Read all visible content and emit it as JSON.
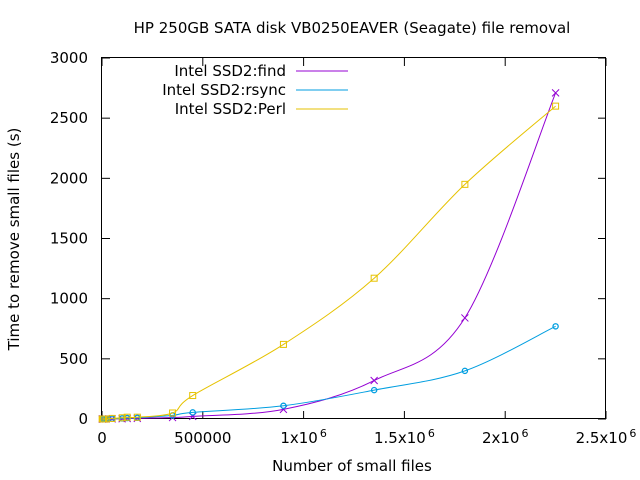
{
  "chart_data": {
    "type": "line",
    "title": "HP 250GB SATA disk VB0250EAVER (Seagate) file removal",
    "xlabel": "Number of small files",
    "ylabel": "Time to remove small files (s)",
    "xlim": [
      0,
      2500000
    ],
    "ylim": [
      0,
      3000
    ],
    "grid": false,
    "legend_position": "top-left",
    "x_ticks": [
      {
        "value": 0,
        "label": "0"
      },
      {
        "value": 500000,
        "label": "500000"
      },
      {
        "value": 1000000,
        "base": "1x10",
        "exp": "6"
      },
      {
        "value": 1500000,
        "base": "1.5x10",
        "exp": "6"
      },
      {
        "value": 2000000,
        "base": "2x10",
        "exp": "6"
      },
      {
        "value": 2500000,
        "base": "2.5x10",
        "exp": "6"
      }
    ],
    "y_ticks": [
      {
        "value": 0,
        "label": "0"
      },
      {
        "value": 500,
        "label": "500"
      },
      {
        "value": 1000,
        "label": "1000"
      },
      {
        "value": 1500,
        "label": "1500"
      },
      {
        "value": 2000,
        "label": "2000"
      },
      {
        "value": 2500,
        "label": "2500"
      },
      {
        "value": 3000,
        "label": "3000"
      }
    ],
    "series": [
      {
        "name": "Intel SSD2:find",
        "color": "#9400d3",
        "marker": "x",
        "points": [
          [
            1000,
            0
          ],
          [
            2000,
            0
          ],
          [
            5000,
            0
          ],
          [
            10000,
            0
          ],
          [
            20000,
            0
          ],
          [
            50000,
            1
          ],
          [
            100000,
            2
          ],
          [
            125000,
            4
          ],
          [
            175000,
            5
          ],
          [
            350000,
            12
          ],
          [
            450000,
            22
          ],
          [
            900000,
            80
          ],
          [
            1350000,
            320
          ],
          [
            1800000,
            840
          ],
          [
            2250000,
            2710
          ]
        ]
      },
      {
        "name": "Intel SSD2:rsync",
        "color": "#009ee0",
        "marker": "circle",
        "points": [
          [
            1000,
            0
          ],
          [
            2000,
            0
          ],
          [
            5000,
            0
          ],
          [
            10000,
            0
          ],
          [
            20000,
            0
          ],
          [
            50000,
            2
          ],
          [
            100000,
            5
          ],
          [
            125000,
            8
          ],
          [
            175000,
            10
          ],
          [
            350000,
            30
          ],
          [
            450000,
            55
          ],
          [
            900000,
            110
          ],
          [
            1350000,
            240
          ],
          [
            1800000,
            400
          ],
          [
            2250000,
            770
          ]
        ]
      },
      {
        "name": "Intel SSD2:Perl",
        "color": "#e6c200",
        "marker": "square",
        "points": [
          [
            1000,
            0
          ],
          [
            2000,
            0
          ],
          [
            5000,
            0
          ],
          [
            10000,
            0
          ],
          [
            20000,
            0
          ],
          [
            50000,
            5
          ],
          [
            100000,
            10
          ],
          [
            125000,
            15
          ],
          [
            175000,
            15
          ],
          [
            350000,
            50
          ],
          [
            450000,
            195
          ],
          [
            900000,
            620
          ],
          [
            1350000,
            1170
          ],
          [
            1800000,
            1950
          ],
          [
            2250000,
            2600
          ]
        ]
      }
    ]
  }
}
